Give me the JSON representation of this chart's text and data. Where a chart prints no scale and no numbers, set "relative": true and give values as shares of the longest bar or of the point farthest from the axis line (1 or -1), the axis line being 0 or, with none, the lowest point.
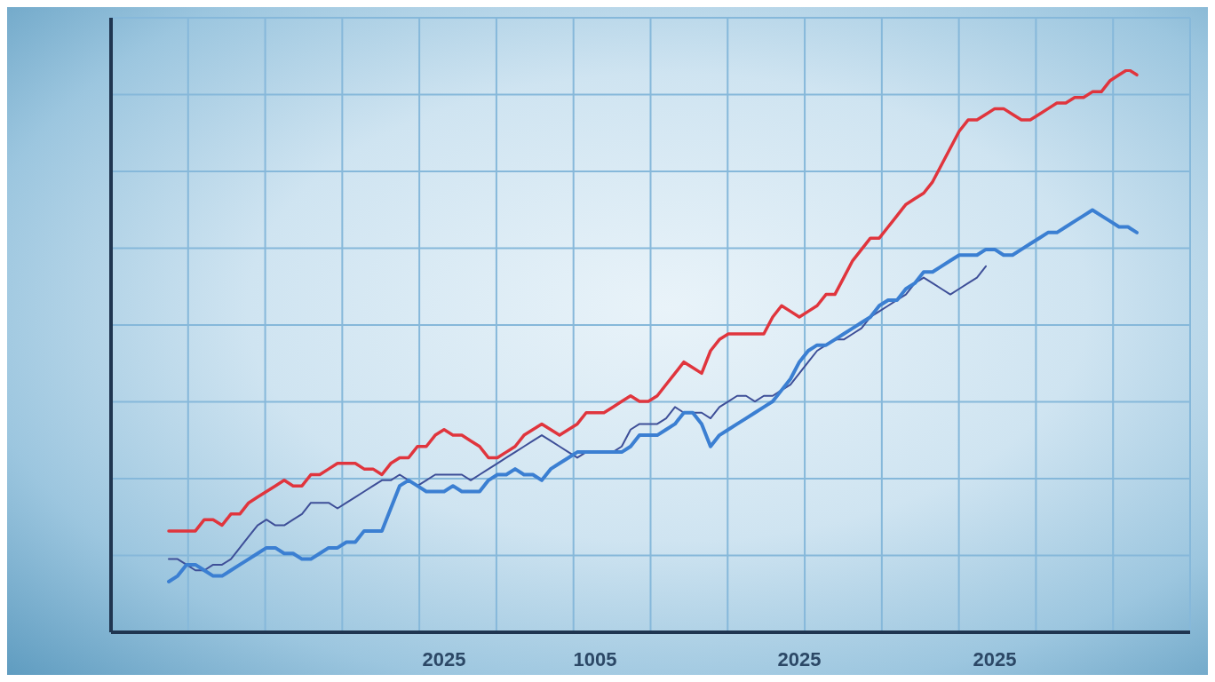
{
  "chart_data": {
    "type": "line",
    "relative": true,
    "categories": [
      null,
      null,
      null,
      null,
      null,
      null,
      null,
      null,
      null,
      null,
      null,
      null,
      null,
      null,
      null,
      null,
      null,
      null,
      null,
      null,
      null,
      null,
      null,
      null,
      null,
      null,
      null,
      null,
      null,
      null,
      null,
      "2025",
      null,
      null,
      null,
      null,
      null,
      null,
      null,
      null,
      null,
      null,
      null,
      null,
      null,
      null,
      null,
      null,
      "1005",
      null,
      null,
      null,
      null,
      null,
      null,
      null,
      null,
      null,
      null,
      null,
      null,
      null,
      null,
      null,
      null,
      null,
      null,
      null,
      null,
      null,
      null,
      "2025",
      null,
      null,
      null,
      null,
      null,
      null,
      null,
      null,
      null,
      null,
      null,
      null,
      null,
      null,
      null,
      null,
      null,
      null,
      null,
      null,
      null,
      "2025",
      null,
      null,
      null,
      null,
      null,
      null,
      null,
      null,
      null,
      null,
      null,
      null,
      null,
      null,
      null,
      null
    ],
    "series": [
      {
        "color": "#e0353d",
        "values": [
          0.18,
          0.18,
          0.18,
          0.18,
          0.2,
          0.2,
          0.19,
          0.21,
          0.21,
          0.23,
          0.24,
          0.25,
          0.26,
          0.27,
          0.26,
          0.26,
          0.28,
          0.28,
          0.29,
          0.3,
          0.3,
          0.3,
          0.29,
          0.29,
          0.28,
          0.3,
          0.31,
          0.31,
          0.33,
          0.33,
          0.35,
          0.36,
          0.35,
          0.35,
          0.34,
          0.33,
          0.31,
          0.31,
          0.32,
          0.33,
          0.35,
          0.36,
          0.37,
          0.36,
          0.35,
          0.36,
          0.37,
          0.39,
          0.39,
          0.39,
          0.4,
          0.41,
          0.42,
          0.41,
          0.41,
          0.42,
          0.44,
          0.46,
          0.48,
          0.47,
          0.46,
          0.5,
          0.52,
          0.53,
          0.53,
          0.53,
          0.53,
          0.53,
          0.56,
          0.58,
          0.57,
          0.56,
          0.57,
          0.58,
          0.6,
          0.6,
          0.63,
          0.66,
          0.68,
          0.7,
          0.7,
          0.72,
          0.74,
          0.76,
          0.77,
          0.78,
          0.8,
          0.83,
          0.86,
          0.89,
          0.91,
          0.91,
          0.92,
          0.93,
          0.93,
          0.92,
          0.91,
          0.91,
          0.92,
          0.93,
          0.94,
          0.94,
          0.95,
          0.95,
          0.96,
          0.96,
          0.98,
          0.99,
          1,
          0.99
        ]
      },
      {
        "color": "#3e4f98",
        "values": [
          0.13,
          0.13,
          0.12,
          0.11,
          0.11,
          0.12,
          0.12,
          0.13,
          0.15,
          0.17,
          0.19,
          0.2,
          0.19,
          0.19,
          0.2,
          0.21,
          0.23,
          0.23,
          0.23,
          0.22,
          0.23,
          0.24,
          0.25,
          0.26,
          0.27,
          0.27,
          0.28,
          0.27,
          0.26,
          0.27,
          0.28,
          0.28,
          0.28,
          0.28,
          0.27,
          0.28,
          0.29,
          0.3,
          0.31,
          0.32,
          0.33,
          0.34,
          0.35,
          0.34,
          0.33,
          0.32,
          0.31,
          0.32,
          0.32,
          0.32,
          0.32,
          0.33,
          0.36,
          0.37,
          0.37,
          0.37,
          0.38,
          0.4,
          0.39,
          0.39,
          0.39,
          0.38,
          0.4,
          0.41,
          0.42,
          0.42,
          0.41,
          0.42,
          0.42,
          0.43,
          0.44,
          0.46,
          0.48,
          0.5,
          0.51,
          0.52,
          0.52,
          0.53,
          0.54,
          0.56,
          0.57,
          0.58,
          0.59,
          0.6,
          0.62,
          0.63,
          0.62,
          0.61,
          0.6,
          0.61,
          0.62,
          0.63,
          0.65,
          null,
          null,
          null,
          null,
          null,
          null,
          null,
          null,
          null,
          null,
          null,
          null,
          null,
          null,
          null,
          null,
          null
        ]
      },
      {
        "color": "#3b7fd2",
        "values": [
          0.09,
          0.1,
          0.12,
          0.12,
          0.11,
          0.1,
          0.1,
          0.11,
          0.12,
          0.13,
          0.14,
          0.15,
          0.15,
          0.14,
          0.14,
          0.13,
          0.13,
          0.14,
          0.15,
          0.15,
          0.16,
          0.16,
          0.18,
          0.18,
          0.18,
          0.22,
          0.26,
          0.27,
          0.26,
          0.25,
          0.25,
          0.25,
          0.26,
          0.25,
          0.25,
          0.25,
          0.27,
          0.28,
          0.28,
          0.29,
          0.28,
          0.28,
          0.27,
          0.29,
          0.3,
          0.31,
          0.32,
          0.32,
          0.32,
          0.32,
          0.32,
          0.32,
          0.33,
          0.35,
          0.35,
          0.35,
          0.36,
          0.37,
          0.39,
          0.39,
          0.37,
          0.33,
          0.35,
          0.36,
          0.37,
          0.38,
          0.39,
          0.4,
          0.41,
          0.43,
          0.45,
          0.48,
          0.5,
          0.51,
          0.51,
          0.52,
          0.53,
          0.54,
          0.55,
          0.56,
          0.58,
          0.59,
          0.59,
          0.61,
          0.62,
          0.64,
          0.64,
          0.65,
          0.66,
          0.67,
          0.67,
          0.67,
          0.68,
          0.68,
          0.67,
          0.67,
          0.68,
          0.69,
          0.7,
          0.71,
          0.71,
          0.72,
          0.73,
          0.74,
          0.75,
          0.74,
          0.73,
          0.72,
          0.72,
          0.71
        ]
      }
    ],
    "grid": true,
    "tick_labels": "x"
  }
}
